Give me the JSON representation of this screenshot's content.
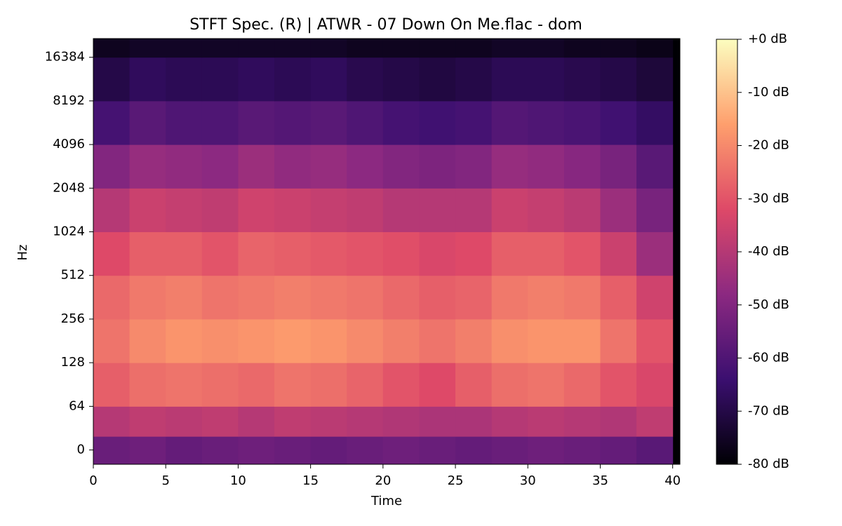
{
  "chart_data": {
    "type": "heatmap",
    "title": "STFT Spec. (R) | ATWR - 07 Down On Me.flac - dom",
    "xlabel": "Time",
    "ylabel": "Hz",
    "xbins": [
      0,
      2.5,
      5,
      7.5,
      10,
      12.5,
      15,
      17.5,
      20,
      22.5,
      25,
      27.5,
      30,
      32.5,
      35,
      37.5,
      40
    ],
    "ybins": [
      -21,
      20,
      64,
      128,
      256,
      512,
      1024,
      2048,
      4096,
      8192,
      16384,
      22050
    ],
    "z": [
      [
        -55,
        -54,
        -56,
        -55,
        -54,
        -55,
        -56,
        -55,
        -54,
        -55,
        -56,
        -55,
        -54,
        -55,
        -56,
        -58
      ],
      [
        -40,
        -38,
        -39,
        -38,
        -40,
        -38,
        -39,
        -40,
        -41,
        -42,
        -42,
        -40,
        -39,
        -40,
        -41,
        -38
      ],
      [
        -28,
        -25,
        -24,
        -25,
        -26,
        -24,
        -25,
        -27,
        -30,
        -32,
        -28,
        -25,
        -24,
        -26,
        -30,
        -33
      ],
      [
        -24,
        -20,
        -18,
        -19,
        -18,
        -17,
        -18,
        -20,
        -22,
        -24,
        -22,
        -19,
        -18,
        -18,
        -24,
        -30
      ],
      [
        -26,
        -23,
        -22,
        -24,
        -23,
        -22,
        -23,
        -24,
        -26,
        -28,
        -27,
        -23,
        -22,
        -23,
        -28,
        -35
      ],
      [
        -32,
        -28,
        -28,
        -30,
        -27,
        -28,
        -29,
        -30,
        -31,
        -33,
        -32,
        -28,
        -28,
        -30,
        -36,
        -45
      ],
      [
        -40,
        -36,
        -37,
        -38,
        -35,
        -36,
        -37,
        -38,
        -40,
        -40,
        -40,
        -36,
        -37,
        -39,
        -45,
        -52
      ],
      [
        -50,
        -46,
        -47,
        -48,
        -45,
        -47,
        -46,
        -48,
        -50,
        -51,
        -50,
        -46,
        -47,
        -49,
        -52,
        -58
      ],
      [
        -62,
        -58,
        -60,
        -60,
        -58,
        -59,
        -58,
        -60,
        -62,
        -63,
        -62,
        -59,
        -60,
        -61,
        -63,
        -66
      ],
      [
        -70,
        -67,
        -68,
        -68,
        -67,
        -68,
        -67,
        -69,
        -70,
        -71,
        -70,
        -68,
        -68,
        -69,
        -70,
        -72
      ],
      [
        -76,
        -75,
        -75,
        -75,
        -75,
        -75,
        -75,
        -76,
        -76,
        -76,
        -76,
        -75,
        -75,
        -76,
        -76,
        -77
      ]
    ],
    "xlim": [
      0,
      40.5
    ],
    "xticks": [
      0,
      5,
      10,
      15,
      20,
      25,
      30,
      35,
      40
    ],
    "ylim": [
      -21,
      22050
    ],
    "yscale": "symlog",
    "linthresh": 64,
    "yticks": [
      0,
      64,
      128,
      256,
      512,
      1024,
      2048,
      4096,
      8192,
      16384
    ],
    "colorscale": [
      "#000004",
      "#3b0f70",
      "#8c2981",
      "#de4968",
      "#fe9f6d",
      "#fcfdbf"
    ],
    "zlim": [
      -80,
      0
    ],
    "zticks": [
      {
        "value": 0,
        "label": "+0 dB"
      },
      {
        "value": -10,
        "label": "-10 dB"
      },
      {
        "value": -20,
        "label": "-20 dB"
      },
      {
        "value": -30,
        "label": "-30 dB"
      },
      {
        "value": -40,
        "label": "-40 dB"
      },
      {
        "value": -50,
        "label": "-50 dB"
      },
      {
        "value": -60,
        "label": "-60 dB"
      },
      {
        "value": -70,
        "label": "-70 dB"
      },
      {
        "value": -80,
        "label": "-80 dB"
      }
    ]
  }
}
